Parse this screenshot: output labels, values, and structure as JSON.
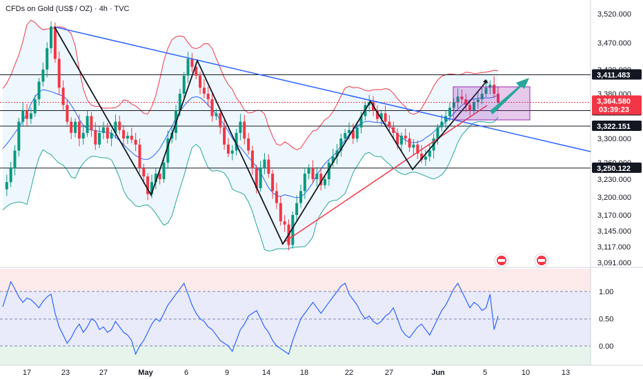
{
  "chart_data": {
    "type": "candlestick",
    "title": "CFDs on Gold (US$ / OZ) · 4h · TVC",
    "price_axis": {
      "ticks": [
        "3,520.000",
        "3,470.000",
        "3,420.000",
        "3,380.000",
        "3,300.000",
        "3,260.000",
        "3,230.000",
        "3,200.000",
        "3,170.000",
        "3,145.000",
        "3,117.000",
        "3,091.000"
      ],
      "tick_values": [
        3520,
        3470,
        3420,
        3380,
        3300,
        3260,
        3230,
        3200,
        3170,
        3145,
        3117,
        3091
      ],
      "range": [
        3080,
        3545
      ]
    },
    "oscillator_axis": {
      "ticks": [
        "1.00",
        "0.50",
        "0.00"
      ],
      "tick_values": [
        1.0,
        0.5,
        0.0
      ],
      "range": [
        -0.25,
        1.45
      ]
    },
    "x_labels": [
      {
        "text": "17",
        "bold": false
      },
      {
        "text": "23",
        "bold": false
      },
      {
        "text": "27",
        "bold": false
      },
      {
        "text": "May",
        "bold": true
      },
      {
        "text": "6",
        "bold": false
      },
      {
        "text": "9",
        "bold": false
      },
      {
        "text": "14",
        "bold": false
      },
      {
        "text": "18",
        "bold": false
      },
      {
        "text": "22",
        "bold": false
      },
      {
        "text": "27",
        "bold": false
      },
      {
        "text": "Jun",
        "bold": true
      },
      {
        "text": "5",
        "bold": false
      },
      {
        "text": "10",
        "bold": false
      },
      {
        "text": "13",
        "bold": false
      }
    ],
    "levels": [
      {
        "label": "3,411.483",
        "value": 3411.483,
        "color": "#131722"
      },
      {
        "label": "3,349.824",
        "value": 3349.824,
        "color": "#131722"
      },
      {
        "label": "3,322.151",
        "value": 3322.151,
        "color": "#131722"
      },
      {
        "label": "3,250.122",
        "value": 3250.122,
        "color": "#131722"
      }
    ],
    "last_price": {
      "label": "3,364.580",
      "countdown": "03:39:23",
      "value": 3364.58,
      "color": "#f23645"
    },
    "close_path": [
      [
        3213,
        3225,
        3250,
        3280,
        3330,
        3350,
        3335,
        3345,
        3370,
        3400,
        3420,
        3460,
        3498,
        3440,
        3390,
        3360,
        3330,
        3310,
        3330,
        3300,
        3310,
        3340,
        3315,
        3290,
        3310,
        3320,
        3300,
        3310,
        3330,
        3315,
        3300,
        3305,
        3298,
        3290,
        3250,
        3235,
        3205,
        3225,
        3240,
        3230,
        3260,
        3300,
        3310,
        3350,
        3380,
        3410,
        3440,
        3425,
        3410,
        3390,
        3380,
        3370,
        3340,
        3345,
        3320,
        3290,
        3275,
        3280,
        3310,
        3330,
        3300,
        3280,
        3250,
        3215,
        3250,
        3265,
        3240,
        3210,
        3190,
        3160,
        3155,
        3120,
        3170,
        3190,
        3210,
        3240,
        3250,
        3230,
        3240,
        3220,
        3230,
        3260,
        3270,
        3280,
        3300,
        3310,
        3315,
        3300,
        3320,
        3340,
        3360,
        3365,
        3350,
        3335,
        3345,
        3330,
        3320,
        3310,
        3290,
        3305,
        3300,
        3285,
        3290,
        3275,
        3265,
        3270,
        3280,
        3300,
        3320,
        3330,
        3340,
        3355,
        3365,
        3375,
        3370,
        3360,
        3350,
        3365,
        3370,
        3380,
        3390,
        3395,
        3380,
        3364
      ]
    ],
    "oscillator": [
      0.72,
      0.95,
      1.18,
      1.05,
      0.9,
      0.8,
      0.88,
      0.85,
      0.78,
      0.7,
      0.82,
      0.9,
      0.95,
      0.6,
      0.35,
      0.2,
      0.05,
      0.15,
      0.3,
      0.4,
      0.25,
      0.35,
      0.5,
      0.45,
      0.3,
      0.35,
      0.25,
      0.3,
      0.45,
      0.35,
      0.25,
      0.2,
      0.1,
      -0.15,
      0.0,
      0.1,
      0.25,
      0.4,
      0.5,
      0.45,
      0.6,
      0.75,
      0.85,
      0.95,
      1.05,
      1.15,
      0.95,
      0.75,
      0.6,
      0.5,
      0.45,
      0.35,
      0.3,
      0.2,
      0.1,
      0.05,
      0.0,
      -0.1,
      0.1,
      0.3,
      0.4,
      0.55,
      0.6,
      0.65,
      0.5,
      0.35,
      0.25,
      0.1,
      0.0,
      -0.05,
      -0.1,
      -0.15,
      0.1,
      0.3,
      0.5,
      0.6,
      0.7,
      0.8,
      0.7,
      0.6,
      0.7,
      0.8,
      0.9,
      1.0,
      1.1,
      1.15,
      0.95,
      0.85,
      0.75,
      0.6,
      0.5,
      0.55,
      0.45,
      0.4,
      0.45,
      0.55,
      0.6,
      0.7,
      0.5,
      0.3,
      0.2,
      0.15,
      0.25,
      0.35,
      0.4,
      0.3,
      0.2,
      0.35,
      0.5,
      0.65,
      0.75,
      0.9,
      1.05,
      1.15,
      1.0,
      0.85,
      0.7,
      0.8,
      0.75,
      0.65,
      0.7,
      0.95,
      0.3,
      0.55
    ]
  }
}
